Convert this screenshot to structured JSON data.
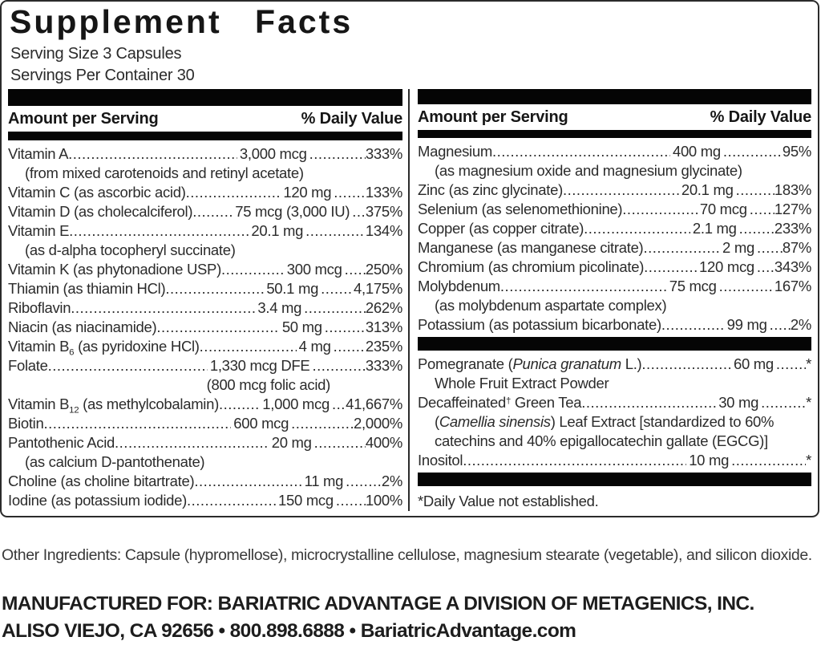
{
  "label": {
    "title": "Supplement Facts",
    "serving_size": "Serving Size 3 Capsules",
    "servings_per_container": "Servings Per Container 30",
    "header": {
      "amount_label": "Amount per Serving",
      "dv_label": "% Daily Value"
    },
    "columns": {
      "left": {
        "rows": [
          {
            "name": "Vitamin A",
            "amount": "3,000 mcg",
            "dv": "333%",
            "subs": [
              {
                "text": "(from mixed carotenoids and retinyl acetate)"
              }
            ]
          },
          {
            "name": "Vitamin C (as ascorbic acid)",
            "amount": "120 mg",
            "dv": "133%"
          },
          {
            "name": "Vitamin D (as cholecalciferol)",
            "amount": "75 mcg (3,000 IU)",
            "dv": "375%"
          },
          {
            "name": "Vitamin E",
            "amount": "20.1 mg",
            "dv": "134%",
            "subs": [
              {
                "text": "(as d-alpha tocopheryl succinate)"
              }
            ]
          },
          {
            "name": "Vitamin K (as phytonadione USP)",
            "amount": "300 mcg",
            "dv": "250%"
          },
          {
            "name": "Thiamin (as thiamin HCl)",
            "amount": "50.1 mg",
            "dv": "4,175%"
          },
          {
            "name": "Riboflavin",
            "amount": "3.4 mg",
            "dv": "262%"
          },
          {
            "name": "Niacin (as niacinamide)",
            "amount": "50 mg",
            "dv": "313%"
          },
          {
            "parts": [
              {
                "t": "Vitamin B"
              },
              {
                "t": "6",
                "s": "sub"
              },
              {
                "t": " (as pyridoxine HCl)"
              }
            ],
            "amount": "4 mg",
            "dv": "235%"
          },
          {
            "name": "Folate",
            "amount": "1,330 mcg DFE",
            "dv": "333%",
            "subs": [
              {
                "text": "(800 mcg folic acid)",
                "align": "right"
              }
            ]
          },
          {
            "parts": [
              {
                "t": "Vitamin B"
              },
              {
                "t": "12",
                "s": "sub"
              },
              {
                "t": " (as methylcobalamin)"
              }
            ],
            "amount": "1,000 mcg",
            "dv": "41,667%"
          },
          {
            "name": "Biotin",
            "amount": "600 mcg",
            "dv": "2,000%"
          },
          {
            "name": "Pantothenic Acid",
            "amount": "20 mg",
            "dv": "400%",
            "subs": [
              {
                "text": "(as calcium D-pantothenate)"
              }
            ]
          },
          {
            "name": "Choline (as choline bitartrate)",
            "amount": "11 mg",
            "dv": "2%"
          },
          {
            "name": "Iodine (as potassium iodide)",
            "amount": "150 mcg",
            "dv": "100%"
          }
        ]
      },
      "right": {
        "top_rows": [
          {
            "name": "Magnesium",
            "amount": "400 mg",
            "dv": "95%",
            "subs": [
              {
                "text": "(as magnesium oxide and magnesium glycinate)"
              }
            ]
          },
          {
            "name": "Zinc (as zinc glycinate)",
            "amount": "20.1 mg",
            "dv": "183%"
          },
          {
            "name": "Selenium (as selenomethionine)",
            "amount": "70 mcg",
            "dv": "127%"
          },
          {
            "name": "Copper (as copper citrate)",
            "amount": "2.1 mg",
            "dv": "233%"
          },
          {
            "name": "Manganese (as manganese citrate)",
            "amount": "2 mg",
            "dv": "87%"
          },
          {
            "name": "Chromium (as chromium picolinate)",
            "amount": "120 mcg",
            "dv": "343%"
          },
          {
            "name": "Molybdenum",
            "amount": "75 mcg",
            "dv": "167%",
            "subs": [
              {
                "text": "(as molybdenum aspartate complex)"
              }
            ]
          },
          {
            "name": "Potassium (as potassium bicarbonate)",
            "amount": "99 mg",
            "dv": "2%"
          }
        ],
        "botanical_rows": [
          {
            "parts": [
              {
                "t": "Pomegranate ("
              },
              {
                "t": "Punica granatum",
                "s": "i"
              },
              {
                "t": " L.) "
              }
            ],
            "amount": "60 mg",
            "dv": "*",
            "subs": [
              {
                "text": "Whole Fruit Extract Powder"
              }
            ]
          },
          {
            "parts": [
              {
                "t": "Decaffeinated"
              },
              {
                "t": "†",
                "s": "sup"
              },
              {
                "t": " Green Tea "
              }
            ],
            "amount": "30 mg",
            "dv": "*",
            "subs": [
              {
                "parts": [
                  {
                    "t": "("
                  },
                  {
                    "t": "Camellia sinensis",
                    "s": "i"
                  },
                  {
                    "t": ") Leaf Extract [standardized to 60%"
                  }
                ]
              },
              {
                "text": "catechins and 40% epigallocatechin gallate (EGCG)]"
              }
            ]
          },
          {
            "name": "Inositol",
            "amount": "10 mg",
            "dv": "*"
          }
        ]
      }
    },
    "footnote": "*Daily Value not established.",
    "other_ingredients": "Other Ingredients: Capsule (hypromellose), microcrystalline cellulose, magnesium stearate (vegetable), and silicon dioxide.",
    "manufacturer": {
      "line1": "MANUFACTURED FOR: BARIATRIC ADVANTAGE A DIVISION OF METAGENICS, INC.",
      "line2": "ALISO VIEJO, CA 92656 • 800.898.6888 • BariatricAdvantage.com"
    }
  },
  "colors": {
    "text": "#2b2b2b",
    "bar": "#050505",
    "border": "#2b2b2b",
    "background": "#ffffff"
  }
}
